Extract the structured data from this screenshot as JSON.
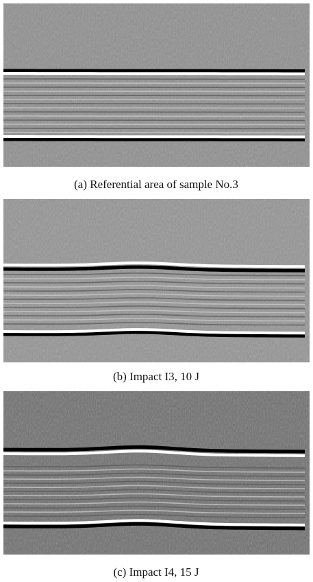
{
  "figure": {
    "panels": [
      {
        "caption": "(a) Referential area of sample No.3"
      },
      {
        "caption": "(b) Impact I3, 10 J"
      },
      {
        "caption": "(c) Impact I4, 15 J"
      }
    ]
  }
}
